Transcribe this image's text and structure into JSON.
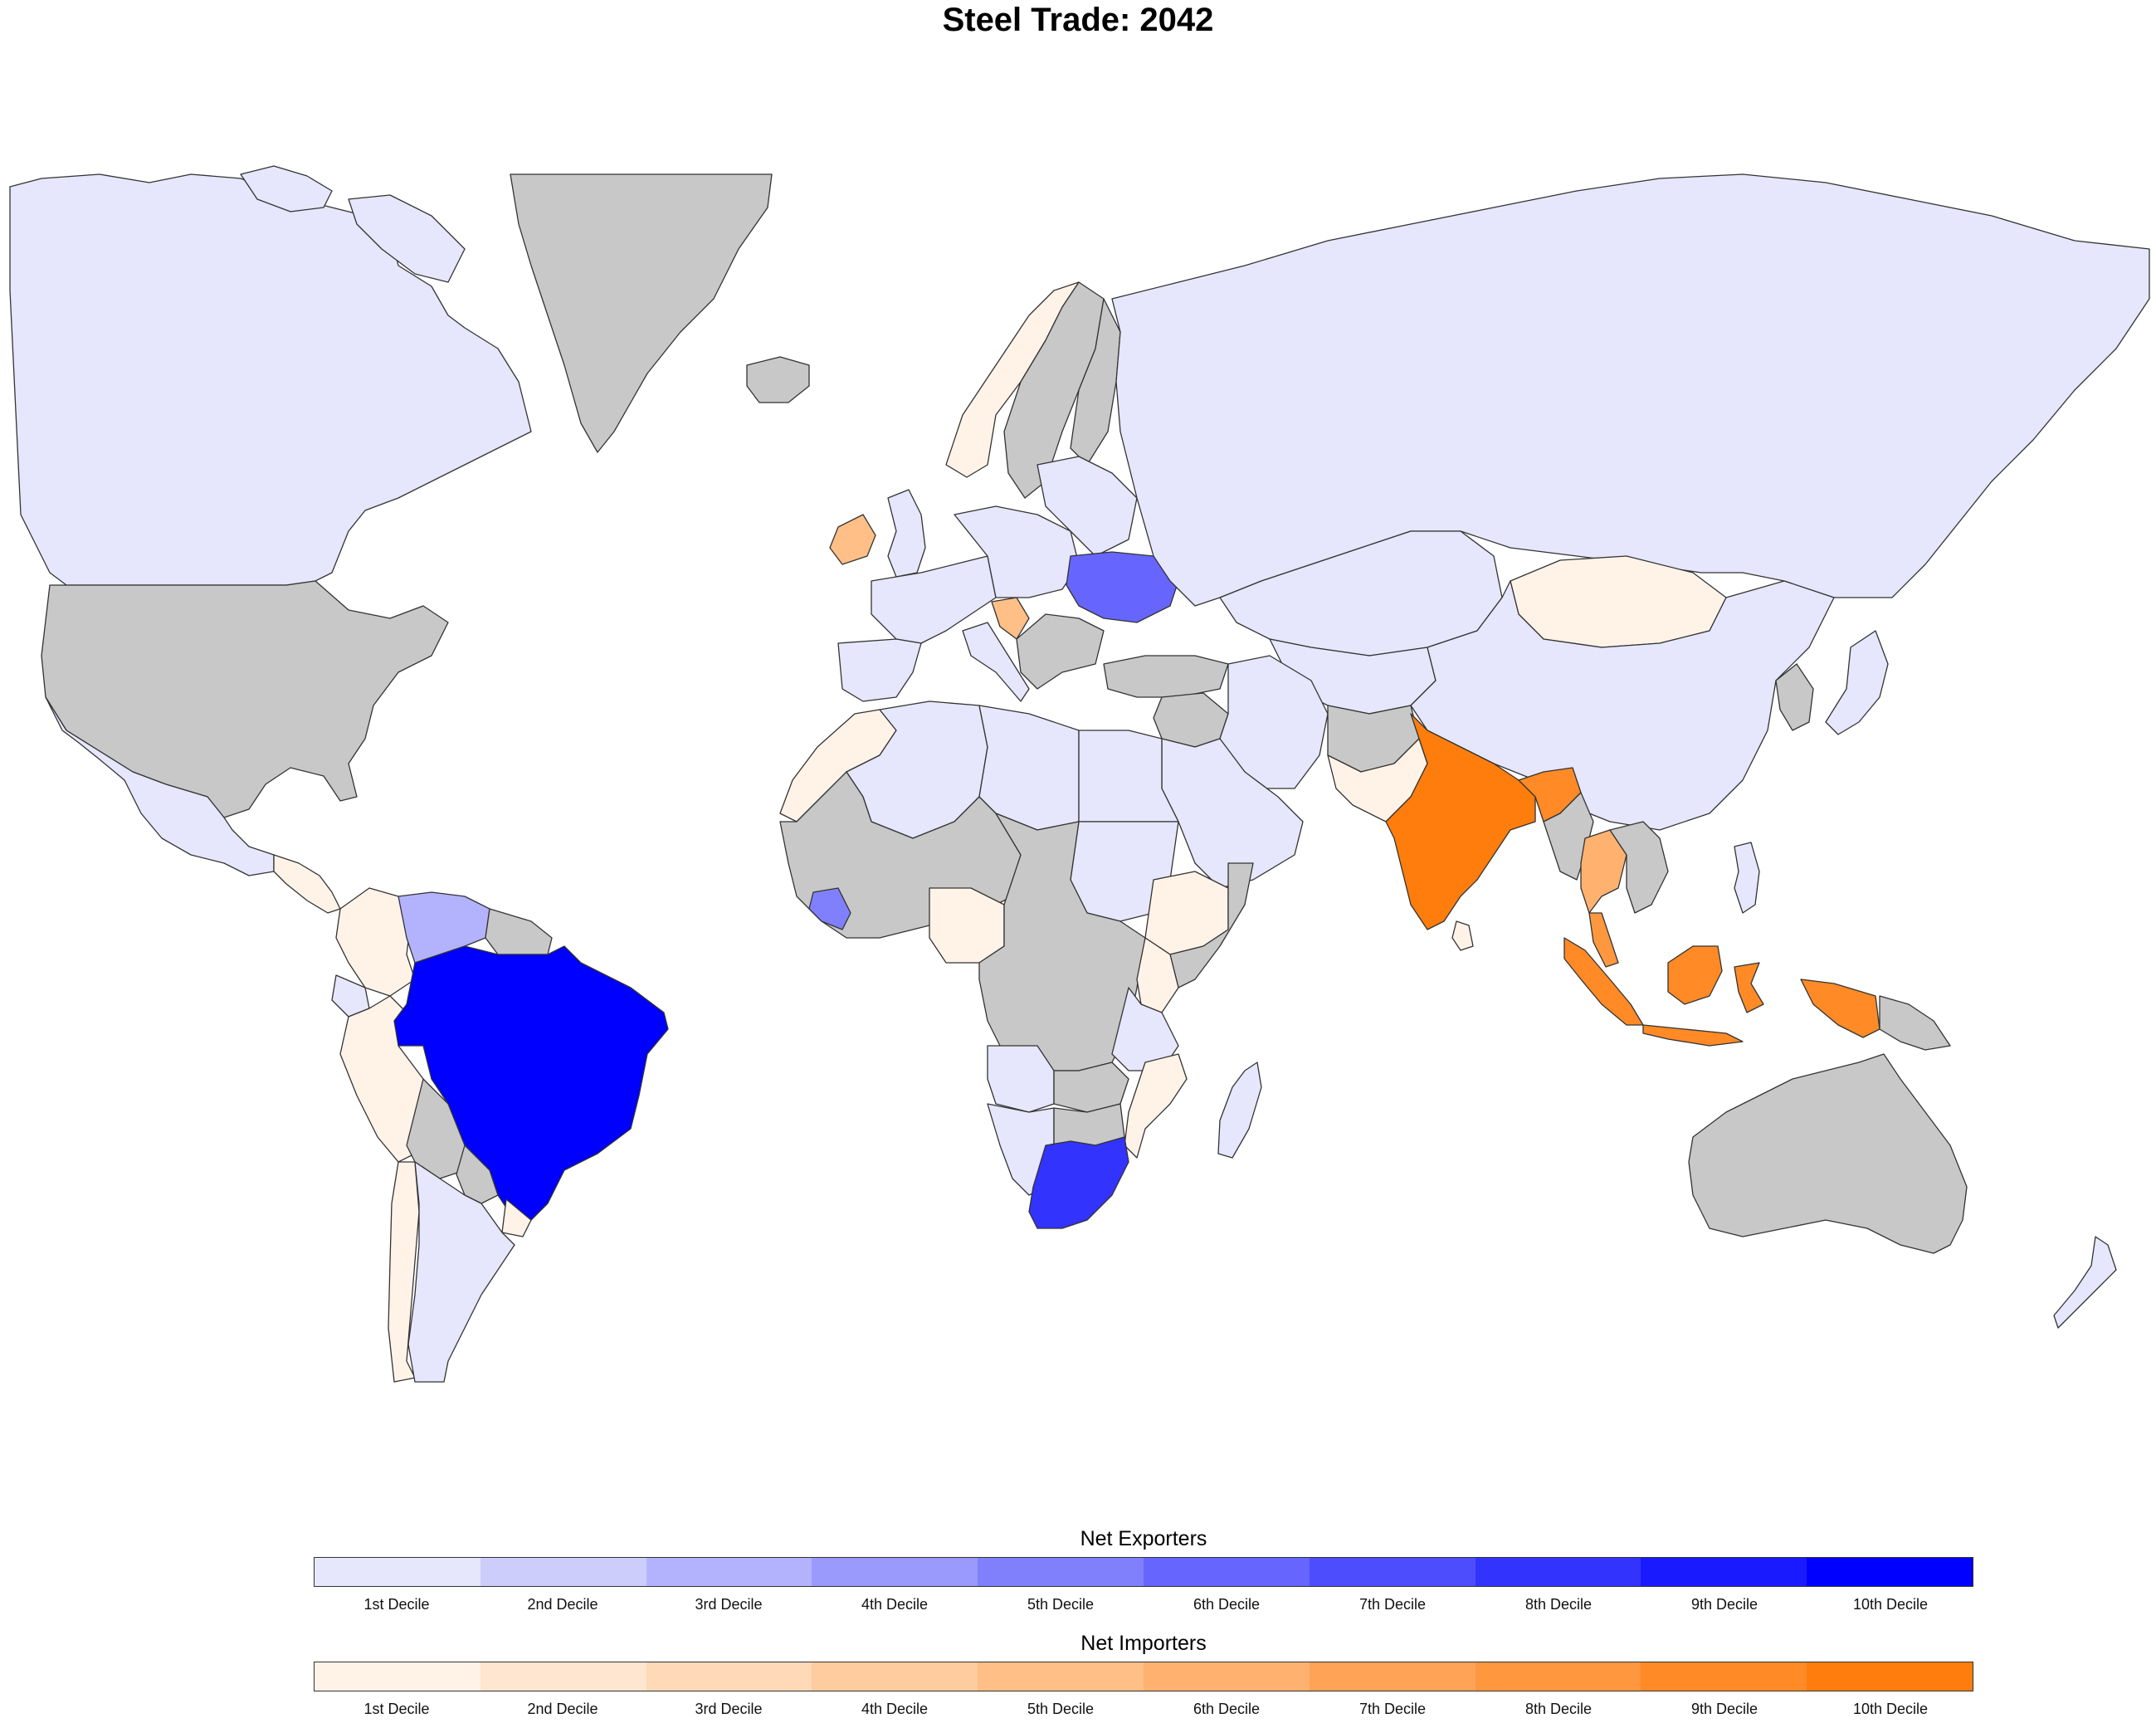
{
  "title": "Steel Trade: 2042",
  "colors": {
    "no_data": "#c8c8c8",
    "exp": [
      "#e6e6fc",
      "#cdcdfc",
      "#b3b3fd",
      "#9a9afd",
      "#8080fd",
      "#6666fe",
      "#4d4dfe",
      "#3333fe",
      "#1a1aff",
      "#0000ff"
    ],
    "imp": [
      "#fff3e8",
      "#ffe6d0",
      "#ffd9b8",
      "#ffcc9f",
      "#ffbf87",
      "#ffb26f",
      "#ffa456",
      "#ff973e",
      "#ff8a26",
      "#ff7d0d"
    ]
  },
  "legend": {
    "exporters": {
      "title": "Net Exporters",
      "labels": [
        "1st Decile",
        "2nd Decile",
        "3rd Decile",
        "4th Decile",
        "5th Decile",
        "6th Decile",
        "7th Decile",
        "8th Decile",
        "9th Decile",
        "10th Decile"
      ]
    },
    "importers": {
      "title": "Net Importers",
      "labels": [
        "1st Decile",
        "2nd Decile",
        "3rd Decile",
        "4th Decile",
        "5th Decile",
        "6th Decile",
        "7th Decile",
        "8th Decile",
        "9th Decile",
        "10th Decile"
      ]
    }
  },
  "regions": [
    {
      "name": "canada",
      "cls": "exp",
      "d": 1
    },
    {
      "name": "usa",
      "cls": "none"
    },
    {
      "name": "mexico",
      "cls": "exp",
      "d": 1
    },
    {
      "name": "central-america",
      "cls": "imp",
      "d": 1
    },
    {
      "name": "greenland",
      "cls": "none"
    },
    {
      "name": "iceland",
      "cls": "none"
    },
    {
      "name": "brazil",
      "cls": "exp",
      "d": 10
    },
    {
      "name": "venezuela",
      "cls": "exp",
      "d": 3
    },
    {
      "name": "colombia",
      "cls": "imp",
      "d": 1
    },
    {
      "name": "ecuador",
      "cls": "exp",
      "d": 1
    },
    {
      "name": "peru",
      "cls": "imp",
      "d": 1
    },
    {
      "name": "bolivia",
      "cls": "none"
    },
    {
      "name": "guianas",
      "cls": "none"
    },
    {
      "name": "chile",
      "cls": "imp",
      "d": 1
    },
    {
      "name": "argentina",
      "cls": "exp",
      "d": 1
    },
    {
      "name": "paraguay",
      "cls": "none"
    },
    {
      "name": "uruguay",
      "cls": "imp",
      "d": 1
    },
    {
      "name": "norway",
      "cls": "imp",
      "d": 1
    },
    {
      "name": "sweden",
      "cls": "none"
    },
    {
      "name": "finland",
      "cls": "none"
    },
    {
      "name": "uk",
      "cls": "exp",
      "d": 1
    },
    {
      "name": "ireland",
      "cls": "imp",
      "d": 5
    },
    {
      "name": "western-europe",
      "cls": "exp",
      "d": 1
    },
    {
      "name": "iberia",
      "cls": "exp",
      "d": 1
    },
    {
      "name": "central-europe",
      "cls": "exp",
      "d": 1
    },
    {
      "name": "eastern-europe",
      "cls": "exp",
      "d": 1
    },
    {
      "name": "ukraine",
      "cls": "exp",
      "d": 6
    },
    {
      "name": "croatia",
      "cls": "imp",
      "d": 5
    },
    {
      "name": "balkans",
      "cls": "none"
    },
    {
      "name": "russia",
      "cls": "exp",
      "d": 1
    },
    {
      "name": "kazakhstan",
      "cls": "exp",
      "d": 1
    },
    {
      "name": "central-asia",
      "cls": "exp",
      "d": 1
    },
    {
      "name": "mongolia",
      "cls": "imp",
      "d": 1
    },
    {
      "name": "china",
      "cls": "exp",
      "d": 1
    },
    {
      "name": "korea",
      "cls": "none"
    },
    {
      "name": "japan",
      "cls": "exp",
      "d": 1
    },
    {
      "name": "turkey",
      "cls": "none"
    },
    {
      "name": "middle-east",
      "cls": "none"
    },
    {
      "name": "iran",
      "cls": "exp",
      "d": 1
    },
    {
      "name": "saudi-arabia",
      "cls": "exp",
      "d": 1
    },
    {
      "name": "afghanistan",
      "cls": "none"
    },
    {
      "name": "pakistan",
      "cls": "imp",
      "d": 1
    },
    {
      "name": "india",
      "cls": "imp",
      "d": 10
    },
    {
      "name": "sri-lanka",
      "cls": "imp",
      "d": 1
    },
    {
      "name": "bangladesh-region",
      "cls": "imp",
      "d": 9
    },
    {
      "name": "myanmar",
      "cls": "none"
    },
    {
      "name": "thailand",
      "cls": "imp",
      "d": 6
    },
    {
      "name": "indochina",
      "cls": "none"
    },
    {
      "name": "philippines",
      "cls": "exp",
      "d": 1
    },
    {
      "name": "malaysia-peninsula",
      "cls": "imp",
      "d": 8
    },
    {
      "name": "sumatra",
      "cls": "imp",
      "d": 9
    },
    {
      "name": "java",
      "cls": "imp",
      "d": 9
    },
    {
      "name": "borneo",
      "cls": "imp",
      "d": 9
    },
    {
      "name": "sulawesi",
      "cls": "imp",
      "d": 9
    },
    {
      "name": "west-papua",
      "cls": "imp",
      "d": 9
    },
    {
      "name": "papua-new-guinea",
      "cls": "none"
    },
    {
      "name": "australia",
      "cls": "none"
    },
    {
      "name": "new-zealand",
      "cls": "exp",
      "d": 1
    },
    {
      "name": "morocco",
      "cls": "imp",
      "d": 1
    },
    {
      "name": "algeria",
      "cls": "exp",
      "d": 1
    },
    {
      "name": "libya",
      "cls": "exp",
      "d": 1
    },
    {
      "name": "egypt",
      "cls": "exp",
      "d": 1
    },
    {
      "name": "west-africa",
      "cls": "none"
    },
    {
      "name": "guinea",
      "cls": "exp",
      "d": 5
    },
    {
      "name": "nigeria",
      "cls": "imp",
      "d": 1
    },
    {
      "name": "sudan",
      "cls": "exp",
      "d": 1
    },
    {
      "name": "ethiopia",
      "cls": "imp",
      "d": 1
    },
    {
      "name": "somalia",
      "cls": "none"
    },
    {
      "name": "central-africa",
      "cls": "none"
    },
    {
      "name": "kenya",
      "cls": "imp",
      "d": 1
    },
    {
      "name": "tanzania",
      "cls": "exp",
      "d": 1
    },
    {
      "name": "angola",
      "cls": "exp",
      "d": 1
    },
    {
      "name": "zambia",
      "cls": "none"
    },
    {
      "name": "mozambique",
      "cls": "imp",
      "d": 1
    },
    {
      "name": "namibia",
      "cls": "exp",
      "d": 1
    },
    {
      "name": "botswana",
      "cls": "none"
    },
    {
      "name": "south-africa",
      "cls": "exp",
      "d": 8
    },
    {
      "name": "madagascar",
      "cls": "exp",
      "d": 1
    }
  ]
}
